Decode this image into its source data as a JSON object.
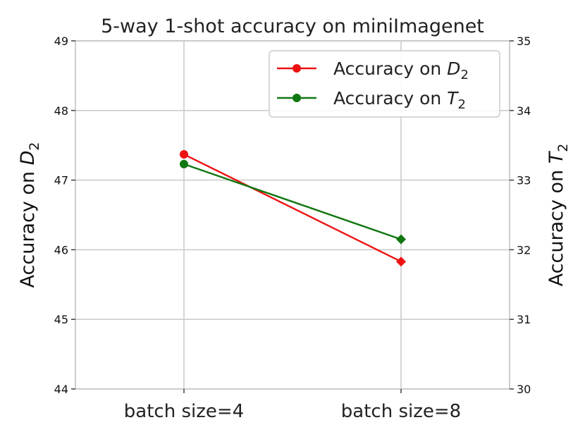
{
  "chart_data": {
    "type": "line",
    "title": "5-way 1-shot accuracy on miniImagenet",
    "categories": [
      "batch size=4",
      "batch size=8"
    ],
    "left_axis": {
      "label_prefix": "Accuracy on ",
      "label_var": "D",
      "label_sub": "2",
      "ylim": [
        44,
        49
      ],
      "ticks": [
        44,
        45,
        46,
        47,
        48,
        49
      ]
    },
    "right_axis": {
      "label_prefix": "Accuracy on ",
      "label_var": "T",
      "label_sub": "2",
      "ylim": [
        30,
        35
      ],
      "ticks": [
        30,
        31,
        32,
        33,
        34,
        35
      ]
    },
    "series": [
      {
        "name_prefix": "Accuracy on ",
        "name_var": "D",
        "name_sub": "2",
        "axis": "left",
        "color": "#ee1111",
        "values": [
          47.37,
          45.83
        ],
        "markers": [
          "circle",
          "diamond"
        ]
      },
      {
        "name_prefix": "Accuracy on ",
        "name_var": "T",
        "name_sub": "2",
        "axis": "right",
        "color": "#117711",
        "values": [
          33.23,
          32.15
        ],
        "markers": [
          "circle",
          "diamond"
        ]
      }
    ],
    "grid": true,
    "legend_position": "top-right"
  }
}
